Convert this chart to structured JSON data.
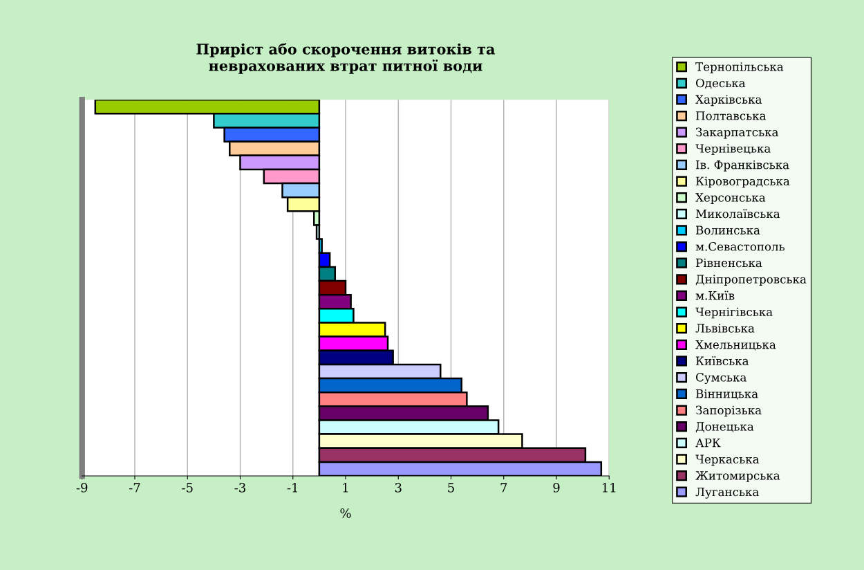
{
  "chart_data": {
    "type": "bar",
    "orientation": "horizontal",
    "stacked": true,
    "title": "Приріст або скорочення витоків та\nневрахованих втрат питної води",
    "xlabel": "%",
    "categories": [
      null,
      null,
      null,
      null,
      null,
      null,
      null,
      null,
      null,
      null,
      null,
      null,
      null,
      null,
      null,
      null,
      null,
      null,
      null,
      null,
      null,
      null,
      null,
      null,
      null,
      null,
      null
    ],
    "series": [
      {
        "name": "Тернопільська",
        "color": "#99cc00",
        "values": [
          -8.5,
          null,
          null,
          null,
          null,
          null,
          null,
          null,
          null,
          null,
          null,
          null,
          null,
          null,
          null,
          null,
          null,
          null,
          null,
          null,
          null,
          null,
          null,
          null,
          null,
          null,
          null
        ]
      },
      {
        "name": "Одеська",
        "color": "#33cccc",
        "values": [
          null,
          -4.0,
          null,
          null,
          null,
          null,
          null,
          null,
          null,
          null,
          null,
          null,
          null,
          null,
          null,
          null,
          null,
          null,
          null,
          null,
          null,
          null,
          null,
          null,
          null,
          null,
          null
        ]
      },
      {
        "name": "Харківська",
        "color": "#3366ff",
        "values": [
          null,
          null,
          -3.6,
          null,
          null,
          null,
          null,
          null,
          null,
          null,
          null,
          null,
          null,
          null,
          null,
          null,
          null,
          null,
          null,
          null,
          null,
          null,
          null,
          null,
          null,
          null,
          null
        ]
      },
      {
        "name": "Полтавська",
        "color": "#ffcc99",
        "values": [
          null,
          null,
          null,
          -3.4,
          null,
          null,
          null,
          null,
          null,
          null,
          null,
          null,
          null,
          null,
          null,
          null,
          null,
          null,
          null,
          null,
          null,
          null,
          null,
          null,
          null,
          null,
          null
        ]
      },
      {
        "name": "Закарпатська",
        "color": "#cc99ff",
        "values": [
          null,
          null,
          null,
          null,
          -3.0,
          null,
          null,
          null,
          null,
          null,
          null,
          null,
          null,
          null,
          null,
          null,
          null,
          null,
          null,
          null,
          null,
          null,
          null,
          null,
          null,
          null,
          null
        ]
      },
      {
        "name": "Чернівецька",
        "color": "#ff99cc",
        "values": [
          null,
          null,
          null,
          null,
          null,
          -2.1,
          null,
          null,
          null,
          null,
          null,
          null,
          null,
          null,
          null,
          null,
          null,
          null,
          null,
          null,
          null,
          null,
          null,
          null,
          null,
          null,
          null
        ]
      },
      {
        "name": "Ів. Франківська",
        "color": "#99ccff",
        "values": [
          null,
          null,
          null,
          null,
          null,
          null,
          -1.4,
          null,
          null,
          null,
          null,
          null,
          null,
          null,
          null,
          null,
          null,
          null,
          null,
          null,
          null,
          null,
          null,
          null,
          null,
          null,
          null
        ]
      },
      {
        "name": "Кіровоградська",
        "color": "#ffff99",
        "values": [
          null,
          null,
          null,
          null,
          null,
          null,
          null,
          -1.2,
          null,
          null,
          null,
          null,
          null,
          null,
          null,
          null,
          null,
          null,
          null,
          null,
          null,
          null,
          null,
          null,
          null,
          null,
          null
        ]
      },
      {
        "name": "Херсонська",
        "color": "#ccffcc",
        "values": [
          null,
          null,
          null,
          null,
          null,
          null,
          null,
          null,
          -0.2,
          null,
          null,
          null,
          null,
          null,
          null,
          null,
          null,
          null,
          null,
          null,
          null,
          null,
          null,
          null,
          null,
          null,
          null
        ]
      },
      {
        "name": "Миколаївська",
        "color": "#ccffff",
        "values": [
          null,
          null,
          null,
          null,
          null,
          null,
          null,
          null,
          null,
          -0.1,
          null,
          null,
          null,
          null,
          null,
          null,
          null,
          null,
          null,
          null,
          null,
          null,
          null,
          null,
          null,
          null,
          null
        ]
      },
      {
        "name": "Волинська",
        "color": "#00ccff",
        "values": [
          null,
          null,
          null,
          null,
          null,
          null,
          null,
          null,
          null,
          null,
          0.1,
          null,
          null,
          null,
          null,
          null,
          null,
          null,
          null,
          null,
          null,
          null,
          null,
          null,
          null,
          null,
          null
        ]
      },
      {
        "name": "м.Севастополь",
        "color": "#0000ff",
        "values": [
          null,
          null,
          null,
          null,
          null,
          null,
          null,
          null,
          null,
          null,
          null,
          0.4,
          null,
          null,
          null,
          null,
          null,
          null,
          null,
          null,
          null,
          null,
          null,
          null,
          null,
          null,
          null
        ]
      },
      {
        "name": "Рівненська",
        "color": "#008080",
        "values": [
          null,
          null,
          null,
          null,
          null,
          null,
          null,
          null,
          null,
          null,
          null,
          null,
          0.6,
          null,
          null,
          null,
          null,
          null,
          null,
          null,
          null,
          null,
          null,
          null,
          null,
          null,
          null
        ]
      },
      {
        "name": "Дніпропетровська",
        "color": "#800000",
        "values": [
          null,
          null,
          null,
          null,
          null,
          null,
          null,
          null,
          null,
          null,
          null,
          null,
          null,
          1.0,
          null,
          null,
          null,
          null,
          null,
          null,
          null,
          null,
          null,
          null,
          null,
          null,
          null
        ]
      },
      {
        "name": "м.Київ",
        "color": "#800080",
        "values": [
          null,
          null,
          null,
          null,
          null,
          null,
          null,
          null,
          null,
          null,
          null,
          null,
          null,
          null,
          1.2,
          null,
          null,
          null,
          null,
          null,
          null,
          null,
          null,
          null,
          null,
          null,
          null
        ]
      },
      {
        "name": "Чернігівська",
        "color": "#00ffff",
        "values": [
          null,
          null,
          null,
          null,
          null,
          null,
          null,
          null,
          null,
          null,
          null,
          null,
          null,
          null,
          null,
          1.3,
          null,
          null,
          null,
          null,
          null,
          null,
          null,
          null,
          null,
          null,
          null
        ]
      },
      {
        "name": "Львівська",
        "color": "#ffff00",
        "values": [
          null,
          null,
          null,
          null,
          null,
          null,
          null,
          null,
          null,
          null,
          null,
          null,
          null,
          null,
          null,
          null,
          2.5,
          null,
          null,
          null,
          null,
          null,
          null,
          null,
          null,
          null,
          null
        ]
      },
      {
        "name": "Хмельницька",
        "color": "#ff00ff",
        "values": [
          null,
          null,
          null,
          null,
          null,
          null,
          null,
          null,
          null,
          null,
          null,
          null,
          null,
          null,
          null,
          null,
          null,
          2.6,
          null,
          null,
          null,
          null,
          null,
          null,
          null,
          null,
          null
        ]
      },
      {
        "name": "Київська",
        "color": "#000080",
        "values": [
          null,
          null,
          null,
          null,
          null,
          null,
          null,
          null,
          null,
          null,
          null,
          null,
          null,
          null,
          null,
          null,
          null,
          null,
          2.8,
          null,
          null,
          null,
          null,
          null,
          null,
          null,
          null
        ]
      },
      {
        "name": "Сумська",
        "color": "#ccccff",
        "values": [
          null,
          null,
          null,
          null,
          null,
          null,
          null,
          null,
          null,
          null,
          null,
          null,
          null,
          null,
          null,
          null,
          null,
          null,
          null,
          4.6,
          null,
          null,
          null,
          null,
          null,
          null,
          null
        ]
      },
      {
        "name": "Вінницька",
        "color": "#0066cc",
        "values": [
          null,
          null,
          null,
          null,
          null,
          null,
          null,
          null,
          null,
          null,
          null,
          null,
          null,
          null,
          null,
          null,
          null,
          null,
          null,
          null,
          5.4,
          null,
          null,
          null,
          null,
          null,
          null
        ]
      },
      {
        "name": "Запорізька",
        "color": "#ff8080",
        "values": [
          null,
          null,
          null,
          null,
          null,
          null,
          null,
          null,
          null,
          null,
          null,
          null,
          null,
          null,
          null,
          null,
          null,
          null,
          null,
          null,
          null,
          5.6,
          null,
          null,
          null,
          null,
          null
        ]
      },
      {
        "name": "Донецька",
        "color": "#660066",
        "values": [
          null,
          null,
          null,
          null,
          null,
          null,
          null,
          null,
          null,
          null,
          null,
          null,
          null,
          null,
          null,
          null,
          null,
          null,
          null,
          null,
          null,
          null,
          6.4,
          null,
          null,
          null,
          null
        ]
      },
      {
        "name": "АРК",
        "color": "#ccffff",
        "values": [
          null,
          null,
          null,
          null,
          null,
          null,
          null,
          null,
          null,
          null,
          null,
          null,
          null,
          null,
          null,
          null,
          null,
          null,
          null,
          null,
          null,
          null,
          null,
          6.8,
          null,
          null,
          null
        ]
      },
      {
        "name": "Черкаська",
        "color": "#ffffcc",
        "values": [
          null,
          null,
          null,
          null,
          null,
          null,
          null,
          null,
          null,
          null,
          null,
          null,
          null,
          null,
          null,
          null,
          null,
          null,
          null,
          null,
          null,
          null,
          null,
          null,
          7.7,
          null,
          null
        ]
      },
      {
        "name": "Житомирська",
        "color": "#993366",
        "values": [
          null,
          null,
          null,
          null,
          null,
          null,
          null,
          null,
          null,
          null,
          null,
          null,
          null,
          null,
          null,
          null,
          null,
          null,
          null,
          null,
          null,
          null,
          null,
          null,
          null,
          10.1,
          null
        ]
      },
      {
        "name": "Луганська",
        "color": "#9999ff",
        "values": [
          null,
          null,
          null,
          null,
          null,
          null,
          null,
          null,
          null,
          null,
          null,
          null,
          null,
          null,
          null,
          null,
          null,
          null,
          null,
          null,
          null,
          null,
          null,
          null,
          null,
          null,
          10.7
        ]
      }
    ],
    "xlim": [
      -9,
      11
    ],
    "xticks": [
      -9,
      -7,
      -5,
      -3,
      -1,
      1,
      3,
      5,
      7,
      9,
      11
    ],
    "grid": "x",
    "legend": "right",
    "tick_labels": "x"
  }
}
